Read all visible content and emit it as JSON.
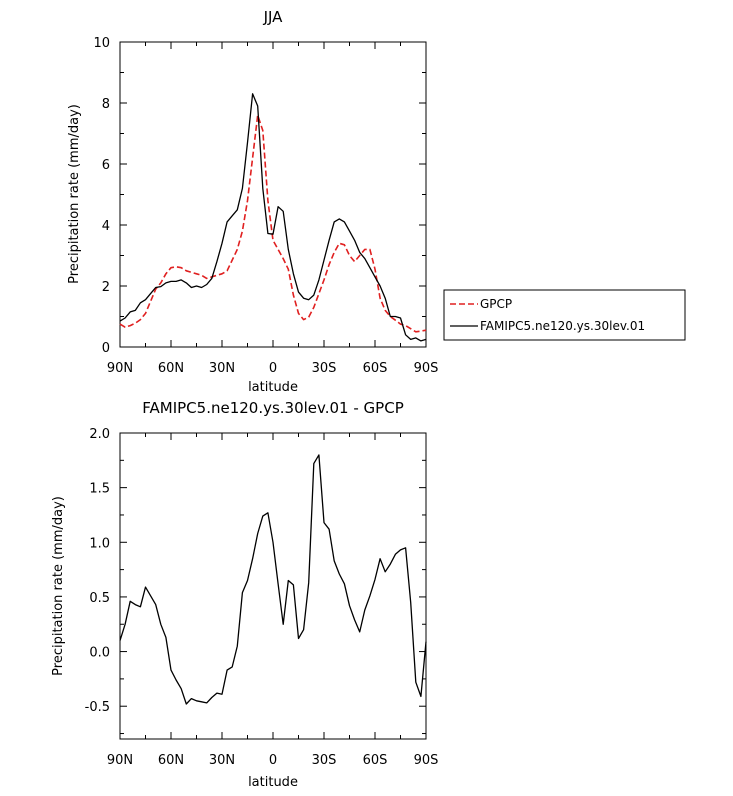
{
  "chart_data": [
    {
      "type": "line",
      "title": "JJA",
      "xlabel": "latitude",
      "ylabel": "Precipitation rate (mm/day)",
      "xlim": [
        90,
        -90
      ],
      "ylim": [
        0,
        10
      ],
      "x_ticks": [
        90,
        60,
        30,
        0,
        -30,
        -60,
        -90
      ],
      "x_tick_labels": [
        "90N",
        "60N",
        "30N",
        "0",
        "30S",
        "60S",
        "90S"
      ],
      "y_ticks": [
        0,
        2,
        4,
        6,
        8,
        10
      ],
      "y_tick_labels": [
        "0",
        "2",
        "4",
        "6",
        "8",
        "10"
      ],
      "legend_position": "right",
      "series": [
        {
          "name": "GPCP",
          "color": "#e02020",
          "style": "dashed",
          "points": [
            [
              90,
              0.75
            ],
            [
              87,
              0.65
            ],
            [
              84,
              0.7
            ],
            [
              81,
              0.78
            ],
            [
              78,
              0.9
            ],
            [
              75,
              1.1
            ],
            [
              72,
              1.5
            ],
            [
              69,
              1.9
            ],
            [
              66,
              2.1
            ],
            [
              63,
              2.4
            ],
            [
              60,
              2.6
            ],
            [
              57,
              2.63
            ],
            [
              54,
              2.6
            ],
            [
              51,
              2.5
            ],
            [
              48,
              2.45
            ],
            [
              45,
              2.4
            ],
            [
              42,
              2.35
            ],
            [
              39,
              2.25
            ],
            [
              36,
              2.3
            ],
            [
              33,
              2.35
            ],
            [
              30,
              2.4
            ],
            [
              27,
              2.5
            ],
            [
              24,
              2.85
            ],
            [
              21,
              3.2
            ],
            [
              18,
              3.8
            ],
            [
              15,
              4.8
            ],
            [
              12,
              6.2
            ],
            [
              9,
              7.6
            ],
            [
              6,
              7.1
            ],
            [
              3,
              4.8
            ],
            [
              0,
              3.5
            ],
            [
              -3,
              3.2
            ],
            [
              -6,
              2.9
            ],
            [
              -9,
              2.55
            ],
            [
              -12,
              1.7
            ],
            [
              -15,
              1.1
            ],
            [
              -18,
              0.9
            ],
            [
              -21,
              0.98
            ],
            [
              -24,
              1.3
            ],
            [
              -27,
              1.75
            ],
            [
              -30,
              2.2
            ],
            [
              -33,
              2.7
            ],
            [
              -36,
              3.1
            ],
            [
              -39,
              3.4
            ],
            [
              -42,
              3.35
            ],
            [
              -45,
              3.0
            ],
            [
              -48,
              2.8
            ],
            [
              -51,
              3.0
            ],
            [
              -54,
              3.2
            ],
            [
              -57,
              3.2
            ],
            [
              -60,
              2.55
            ],
            [
              -63,
              1.6
            ],
            [
              -66,
              1.2
            ],
            [
              -69,
              1.0
            ],
            [
              -72,
              0.88
            ],
            [
              -75,
              0.75
            ],
            [
              -78,
              0.7
            ],
            [
              -81,
              0.6
            ],
            [
              -84,
              0.5
            ],
            [
              -87,
              0.52
            ],
            [
              -90,
              0.55
            ]
          ]
        },
        {
          "name": "FAMIPC5.ne120.ys.30lev.01",
          "color": "#000000",
          "style": "solid",
          "points": [
            [
              90,
              0.85
            ],
            [
              87,
              0.95
            ],
            [
              84,
              1.15
            ],
            [
              81,
              1.2
            ],
            [
              78,
              1.45
            ],
            [
              75,
              1.55
            ],
            [
              72,
              1.75
            ],
            [
              69,
              1.95
            ],
            [
              66,
              1.98
            ],
            [
              63,
              2.1
            ],
            [
              60,
              2.15
            ],
            [
              57,
              2.15
            ],
            [
              54,
              2.2
            ],
            [
              51,
              2.1
            ],
            [
              48,
              1.95
            ],
            [
              45,
              2.0
            ],
            [
              42,
              1.95
            ],
            [
              39,
              2.05
            ],
            [
              36,
              2.25
            ],
            [
              33,
              2.8
            ],
            [
              30,
              3.4
            ],
            [
              27,
              4.1
            ],
            [
              24,
              4.3
            ],
            [
              21,
              4.5
            ],
            [
              18,
              5.2
            ],
            [
              15,
              6.7
            ],
            [
              12,
              8.3
            ],
            [
              9,
              7.9
            ],
            [
              6,
              5.2
            ],
            [
              3,
              3.72
            ],
            [
              0,
              3.7
            ],
            [
              -3,
              4.6
            ],
            [
              -6,
              4.45
            ],
            [
              -9,
              3.2
            ],
            [
              -12,
              2.4
            ],
            [
              -15,
              1.8
            ],
            [
              -18,
              1.6
            ],
            [
              -21,
              1.55
            ],
            [
              -24,
              1.7
            ],
            [
              -27,
              2.2
            ],
            [
              -30,
              2.85
            ],
            [
              -33,
              3.5
            ],
            [
              -36,
              4.1
            ],
            [
              -39,
              4.2
            ],
            [
              -42,
              4.1
            ],
            [
              -45,
              3.8
            ],
            [
              -48,
              3.5
            ],
            [
              -51,
              3.1
            ],
            [
              -54,
              2.9
            ],
            [
              -57,
              2.6
            ],
            [
              -60,
              2.3
            ],
            [
              -63,
              2.0
            ],
            [
              -66,
              1.6
            ],
            [
              -69,
              1.0
            ],
            [
              -72,
              1.0
            ],
            [
              -75,
              0.95
            ],
            [
              -78,
              0.4
            ],
            [
              -81,
              0.25
            ],
            [
              -84,
              0.3
            ],
            [
              -87,
              0.2
            ],
            [
              -90,
              0.25
            ]
          ]
        }
      ]
    },
    {
      "type": "line",
      "title": "FAMIPC5.ne120.ys.30lev.01 - GPCP",
      "xlabel": "latitude",
      "ylabel": "Precipitation rate (mm/day)",
      "xlim": [
        90,
        -90
      ],
      "ylim": [
        -0.8,
        2.0
      ],
      "x_ticks": [
        90,
        60,
        30,
        0,
        -30,
        -60,
        -90
      ],
      "x_tick_labels": [
        "90N",
        "60N",
        "30N",
        "0",
        "30S",
        "60S",
        "90S"
      ],
      "y_ticks": [
        -0.5,
        0.0,
        0.5,
        1.0,
        1.5,
        2.0
      ],
      "y_tick_labels": [
        "-0.5",
        "0.0",
        "0.5",
        "1.0",
        "1.5",
        "2.0"
      ],
      "series": [
        {
          "name": "FAMIPC5.ne120.ys.30lev.01 - GPCP",
          "color": "#000000",
          "style": "solid",
          "points": [
            [
              90,
              0.1
            ],
            [
              87,
              0.25
            ],
            [
              84,
              0.46
            ],
            [
              81,
              0.43
            ],
            [
              78,
              0.41
            ],
            [
              75,
              0.59
            ],
            [
              72,
              0.51
            ],
            [
              69,
              0.43
            ],
            [
              66,
              0.25
            ],
            [
              63,
              0.13
            ],
            [
              60,
              -0.17
            ],
            [
              57,
              -0.26
            ],
            [
              54,
              -0.34
            ],
            [
              51,
              -0.48
            ],
            [
              48,
              -0.43
            ],
            [
              45,
              -0.45
            ],
            [
              42,
              -0.46
            ],
            [
              39,
              -0.47
            ],
            [
              36,
              -0.42
            ],
            [
              33,
              -0.38
            ],
            [
              30,
              -0.39
            ],
            [
              27,
              -0.17
            ],
            [
              24,
              -0.14
            ],
            [
              21,
              0.05
            ],
            [
              18,
              0.54
            ],
            [
              15,
              0.65
            ],
            [
              12,
              0.85
            ],
            [
              9,
              1.08
            ],
            [
              6,
              1.24
            ],
            [
              3,
              1.27
            ],
            [
              0,
              1.0
            ],
            [
              -3,
              0.62
            ],
            [
              -6,
              0.25
            ],
            [
              -9,
              0.65
            ],
            [
              -12,
              0.61
            ],
            [
              -15,
              0.12
            ],
            [
              -18,
              0.2
            ],
            [
              -21,
              0.63
            ],
            [
              -24,
              1.72
            ],
            [
              -27,
              1.8
            ],
            [
              -30,
              1.18
            ],
            [
              -33,
              1.12
            ],
            [
              -36,
              0.83
            ],
            [
              -39,
              0.71
            ],
            [
              -42,
              0.62
            ],
            [
              -45,
              0.42
            ],
            [
              -48,
              0.29
            ],
            [
              -51,
              0.18
            ],
            [
              -54,
              0.38
            ],
            [
              -57,
              0.51
            ],
            [
              -60,
              0.66
            ],
            [
              -63,
              0.85
            ],
            [
              -66,
              0.73
            ],
            [
              -69,
              0.8
            ],
            [
              -72,
              0.89
            ],
            [
              -75,
              0.93
            ],
            [
              -78,
              0.95
            ],
            [
              -81,
              0.45
            ],
            [
              -84,
              -0.28
            ],
            [
              -87,
              -0.41
            ],
            [
              -90,
              0.09
            ]
          ]
        }
      ]
    }
  ]
}
